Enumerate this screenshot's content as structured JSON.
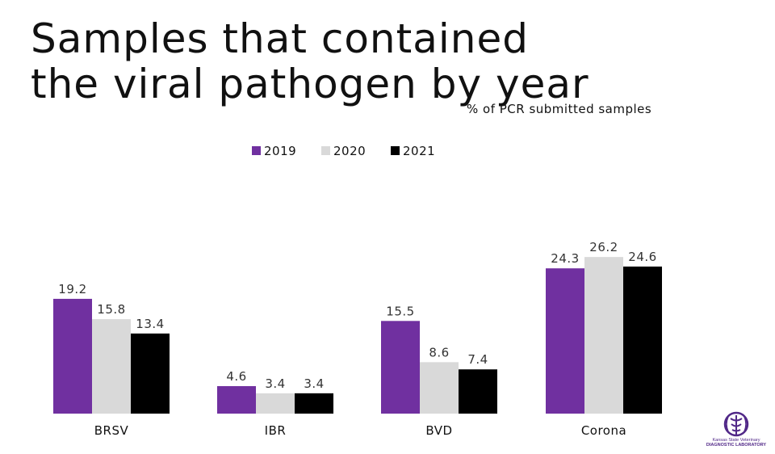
{
  "page": {
    "title_line1": "Samples that contained",
    "title_line2": "the viral pathogen by year",
    "subtitle": "% of PCR submitted samples"
  },
  "logo": {
    "line1": "Kansas State Veterinary",
    "line2": "DIAGNOSTIC LABORATORY",
    "color": "#512888"
  },
  "chart_data": {
    "type": "bar",
    "title": "Samples that contained the viral pathogen by year",
    "subtitle": "% of PCR submitted samples",
    "categories": [
      "BRSV",
      "IBR",
      "BVD",
      "Corona"
    ],
    "series": [
      {
        "name": "2019",
        "color": "#7030a0",
        "values": [
          19.2,
          4.6,
          15.5,
          24.3
        ]
      },
      {
        "name": "2020",
        "color": "#d9d9d9",
        "values": [
          15.8,
          3.4,
          8.6,
          26.2
        ]
      },
      {
        "name": "2021",
        "color": "#000000",
        "values": [
          13.4,
          3.4,
          7.4,
          24.6
        ]
      }
    ],
    "legend": "top-center",
    "grid": false,
    "ylim": [
      0,
      30
    ],
    "xlabel": "",
    "ylabel": ""
  }
}
